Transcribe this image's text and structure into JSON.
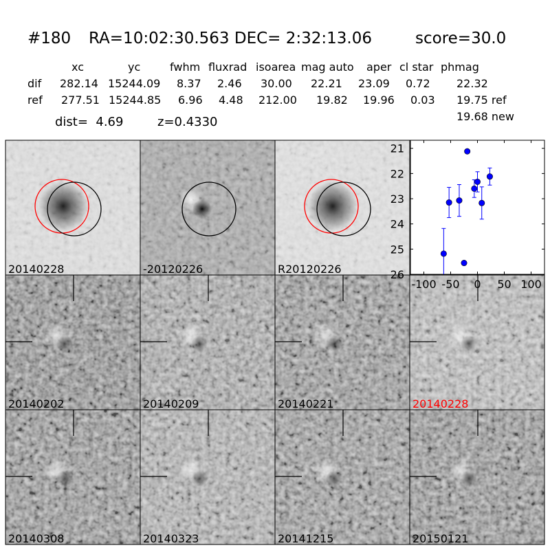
{
  "header": {
    "id": "#180",
    "coords": "RA=10:02:30.563 DEC= 2:32:13.06",
    "score": "score=30.0"
  },
  "table": {
    "columns": [
      "xc",
      "yc",
      "fwhm",
      "fluxrad",
      "isoarea",
      "mag auto",
      "aper",
      "cl star",
      "phmag"
    ],
    "rows": [
      {
        "label": "dif",
        "values": [
          "282.14",
          "15244.09",
          "8.37",
          "2.46",
          "30.00",
          "22.21",
          "23.09",
          "0.72",
          "22.32"
        ]
      },
      {
        "label": "ref",
        "values": [
          "277.51",
          "15244.85",
          "6.96",
          "4.48",
          "212.00",
          "19.82",
          "19.96",
          "0.03",
          "19.75 ref"
        ]
      }
    ],
    "extra_phmag": "19.68 new",
    "dist": "dist=  4.69",
    "z": "z=0.4330"
  },
  "panels": [
    {
      "label": "20140228",
      "label_color": "#000000",
      "kind": "new"
    },
    {
      "label": "-20120226",
      "label_color": "#000000",
      "kind": "diff"
    },
    {
      "label": "R20120226",
      "label_color": "#000000",
      "kind": "ref"
    },
    {
      "label": "20140202",
      "label_color": "#000000",
      "kind": "epoch"
    },
    {
      "label": "20140209",
      "label_color": "#000000",
      "kind": "epoch"
    },
    {
      "label": "20140221",
      "label_color": "#000000",
      "kind": "epoch"
    },
    {
      "label": "20140228",
      "label_color": "#ff0000",
      "kind": "epoch"
    },
    {
      "label": "20140308",
      "label_color": "#000000",
      "kind": "epoch"
    },
    {
      "label": "20140323",
      "label_color": "#000000",
      "kind": "epoch"
    },
    {
      "label": "20141215",
      "label_color": "#000000",
      "kind": "epoch"
    },
    {
      "label": "20150121",
      "label_color": "#000000",
      "kind": "epoch"
    }
  ],
  "chart_data": {
    "type": "scatter",
    "title": "",
    "xlabel": "",
    "ylabel": "",
    "xlim": [
      -125,
      125
    ],
    "ylim": [
      26,
      20.68
    ],
    "y_inverted": true,
    "xticks": [
      -100,
      -50,
      0,
      50,
      100
    ],
    "yticks": [
      21,
      22,
      23,
      24,
      25,
      26
    ],
    "grid": false,
    "marker_color": "#0000ff",
    "points": [
      {
        "x": -63,
        "y": 25.18,
        "err": 1.0
      },
      {
        "x": -53,
        "y": 23.15,
        "err": 0.6
      },
      {
        "x": -34,
        "y": 23.07,
        "err": 0.63
      },
      {
        "x": -25,
        "y": 25.55,
        "err": 0.05
      },
      {
        "x": -19,
        "y": 21.12,
        "err": 0.05
      },
      {
        "x": -6,
        "y": 22.6,
        "err": 0.35
      },
      {
        "x": 0,
        "y": 22.33,
        "err": 0.4
      },
      {
        "x": 8,
        "y": 23.17,
        "err": 0.64
      },
      {
        "x": 23,
        "y": 22.12,
        "err": 0.34
      }
    ]
  }
}
